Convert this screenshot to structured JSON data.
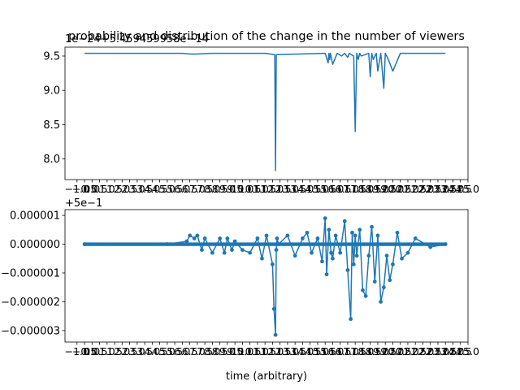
{
  "chart_data": [
    {
      "type": "line",
      "title": "probability and distribution of the change in the number of viewers",
      "offset_text": "1e−24+5.459459958e−14",
      "xlabel": "",
      "ylabel": "",
      "xlim": [
        -1.8,
        25.0
      ],
      "ylim": [
        7.7,
        9.63
      ],
      "yticks": [
        8.0,
        8.5,
        9.0,
        9.5
      ],
      "ytick_labels": [
        "8.0",
        "8.5",
        "9.0",
        "9.5"
      ],
      "xticks": [
        -1.0,
        -0.5,
        0.0,
        0.5,
        1.0,
        1.5,
        2.0,
        2.5,
        3.0,
        3.5,
        4.0,
        4.5,
        5.0,
        5.5,
        6.0,
        6.5,
        7.0,
        7.5,
        8.0,
        8.5,
        9.0,
        9.5,
        10.0,
        10.5,
        11.0,
        11.5,
        12.0,
        12.5,
        13.0,
        13.5,
        14.0,
        14.5,
        15.0,
        15.5,
        16.0,
        16.5,
        17.0,
        17.5,
        18.0,
        18.5,
        19.0,
        19.5,
        20.0,
        20.5,
        21.0,
        21.5,
        22.0,
        22.5,
        23.0,
        23.5,
        24.0,
        24.5,
        25.0
      ],
      "xtick_labels": [
        "−1.0",
        "−0.5",
        "0.0",
        "0.5",
        "1.0",
        "1.5",
        "2.0",
        "2.5",
        "3.0",
        "3.5",
        "4.0",
        "4.5",
        "5.0",
        "5.5",
        "6.0",
        "6.5",
        "7.0",
        "7.5",
        "8.0",
        "8.5",
        "9.0",
        "9.5",
        "10.0",
        "10.5",
        "11.0",
        "11.5",
        "12.0",
        "12.5",
        "13.0",
        "13.5",
        "14.0",
        "14.5",
        "15.0",
        "15.5",
        "16.0",
        "16.5",
        "17.0",
        "17.5",
        "18.0",
        "18.5",
        "19.0",
        "19.5",
        "20.0",
        "20.5",
        "21.0",
        "21.5",
        "22.0",
        "22.5",
        "23.0",
        "23.5",
        "24.0",
        "24.5",
        "25.0"
      ],
      "color": "#1f77b4",
      "markers": false,
      "series": [
        {
          "baseline": 9.54,
          "x": [
            -0.5,
            6.0,
            6.5,
            7.0,
            7.5,
            8.0,
            11.5,
            12.15,
            12.2,
            12.25,
            15.5,
            15.7,
            15.75,
            15.8,
            15.85,
            16.0,
            16.3,
            16.6,
            16.8,
            17.0,
            17.1,
            17.4,
            17.5,
            17.6,
            17.7,
            17.8,
            17.9,
            18.4,
            18.5,
            18.6,
            18.7,
            18.9,
            19.0,
            19.2,
            19.4,
            19.5,
            19.7,
            20.0,
            20.5,
            23.5
          ],
          "y": [
            9.54,
            9.54,
            9.53,
            9.53,
            9.535,
            9.54,
            9.54,
            9.52,
            7.83,
            9.52,
            9.54,
            9.4,
            9.54,
            9.45,
            9.54,
            9.38,
            9.54,
            9.5,
            9.54,
            9.48,
            9.54,
            9.5,
            8.4,
            9.54,
            9.45,
            9.54,
            9.5,
            9.54,
            9.2,
            9.54,
            9.45,
            9.54,
            9.28,
            9.54,
            9.03,
            9.54,
            9.45,
            9.28,
            9.54,
            9.54
          ]
        }
      ]
    },
    {
      "type": "line",
      "title": "",
      "offset_text": "+5e−1",
      "xlabel": "time (arbitrary)",
      "ylabel": "",
      "xlim": [
        -1.8,
        25.0
      ],
      "ylim": [
        -3.4e-06,
        1.2e-06
      ],
      "yticks": [
        -3e-06,
        -2e-06,
        -1e-06,
        0.0,
        1e-06
      ],
      "ytick_labels": [
        "−0.000003",
        "−0.000002",
        "−0.000001",
        "0.000000",
        "0.000001"
      ],
      "xticks": [
        -1.0,
        -0.5,
        0.0,
        0.5,
        1.0,
        1.5,
        2.0,
        2.5,
        3.0,
        3.5,
        4.0,
        4.5,
        5.0,
        5.5,
        6.0,
        6.5,
        7.0,
        7.5,
        8.0,
        8.5,
        9.0,
        9.5,
        10.0,
        10.5,
        11.0,
        11.5,
        12.0,
        12.5,
        13.0,
        13.5,
        14.0,
        14.5,
        15.0,
        15.5,
        16.0,
        16.5,
        17.0,
        17.5,
        18.0,
        18.5,
        19.0,
        19.5,
        20.0,
        20.5,
        21.0,
        21.5,
        22.0,
        22.5,
        23.0,
        23.5,
        24.0,
        24.5,
        25.0
      ],
      "xtick_labels": [
        "−1.0",
        "−0.5",
        "0.0",
        "0.5",
        "1.0",
        "1.5",
        "2.0",
        "2.5",
        "3.0",
        "3.5",
        "4.0",
        "4.5",
        "5.0",
        "5.5",
        "6.0",
        "6.5",
        "7.0",
        "7.5",
        "8.0",
        "8.5",
        "9.0",
        "9.5",
        "10.0",
        "10.5",
        "11.0",
        "11.5",
        "12.0",
        "12.5",
        "13.0",
        "13.5",
        "14.0",
        "14.5",
        "15.0",
        "15.5",
        "16.0",
        "16.5",
        "17.0",
        "17.5",
        "18.0",
        "18.5",
        "19.0",
        "19.5",
        "20.0",
        "20.5",
        "21.0",
        "21.5",
        "22.0",
        "22.5",
        "23.0",
        "23.5",
        "24.0",
        "24.5",
        "25.0"
      ],
      "color": "#1f77b4",
      "markers": true,
      "series": [
        {
          "baseline": 0.0,
          "x": [
            -0.5,
            5.0,
            6.3,
            6.5,
            6.8,
            7.0,
            7.3,
            7.5,
            8.0,
            8.5,
            8.8,
            9.0,
            9.3,
            9.5,
            10.0,
            10.5,
            11.0,
            11.3,
            11.6,
            12.0,
            12.1,
            12.2,
            12.25,
            12.3,
            12.4,
            13.0,
            13.5,
            14.0,
            14.3,
            14.6,
            15.0,
            15.3,
            15.5,
            15.6,
            15.75,
            15.9,
            16.0,
            16.2,
            16.5,
            16.8,
            17.0,
            17.2,
            17.3,
            17.4,
            17.5,
            17.6,
            17.8,
            18.0,
            18.2,
            18.4,
            18.6,
            18.8,
            19.0,
            19.2,
            19.4,
            19.6,
            19.8,
            20.0,
            20.3,
            20.6,
            21.0,
            21.5,
            22.5,
            23.5
          ],
          "y": [
            0.0,
            0.0,
            1e-07,
            3e-07,
            2e-07,
            3e-07,
            -2e-07,
            2e-07,
            -3e-07,
            2e-07,
            -3e-07,
            2e-07,
            -2e-07,
            1e-07,
            -2e-07,
            -3e-07,
            2e-07,
            -5e-07,
            3e-07,
            -7e-07,
            -2.25e-06,
            -3.15e-06,
            -2e-07,
            2e-07,
            0.0,
            3e-07,
            -4e-07,
            2e-07,
            4e-07,
            -3e-07,
            2e-07,
            -6e-07,
            9e-07,
            -1.05e-06,
            5e-07,
            -3e-07,
            -5e-07,
            3e-07,
            -3e-07,
            8e-07,
            -9e-07,
            -2.6e-06,
            4e-07,
            -7e-07,
            3e-07,
            -4e-07,
            5e-07,
            -1.6e-06,
            -1.8e-06,
            -4e-07,
            6e-07,
            -1.3e-06,
            3e-07,
            -2e-06,
            -1.5e-06,
            -4e-07,
            -1.25e-06,
            -7e-07,
            4e-07,
            -5e-07,
            -3e-07,
            2e-07,
            -1e-07,
            0.0
          ]
        }
      ]
    }
  ]
}
